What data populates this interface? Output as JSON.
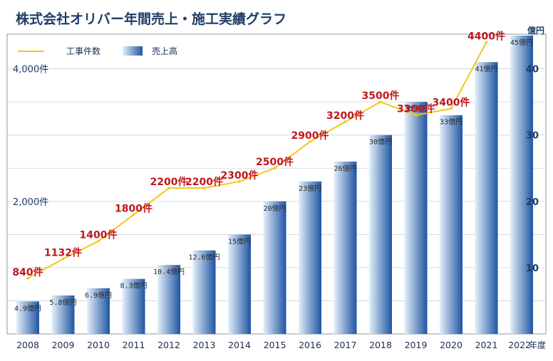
{
  "chart_data": {
    "type": "bar",
    "title": "株式会社オリバー年間売上・施工実績グラフ",
    "categories": [
      "2008",
      "2009",
      "2010",
      "2011",
      "2012",
      "2013",
      "2014",
      "2015",
      "2016",
      "2017",
      "2018",
      "2019",
      "2020",
      "2021",
      "2022"
    ],
    "x_unit": "年度",
    "series": [
      {
        "name": "売上高",
        "type": "bar",
        "axis": "right",
        "values": [
          4.9,
          5.8,
          6.9,
          8.3,
          10.4,
          12.6,
          15,
          20,
          23,
          26,
          30,
          35,
          33,
          41,
          45
        ],
        "labels": [
          "4.9億円",
          "5.8億円",
          "6.9億円",
          "8.3億円",
          "10.4億円",
          "12.6億円",
          "15億円",
          "20億円",
          "23億円",
          "26億円",
          "30億円",
          "35億円",
          "33億円",
          "41億円",
          "45億円"
        ]
      },
      {
        "name": "工事件数",
        "type": "line",
        "axis": "left",
        "values": [
          840,
          1132,
          1400,
          1800,
          2200,
          2200,
          2300,
          2500,
          2900,
          3200,
          3500,
          3300,
          3400,
          4400,
          null
        ],
        "labels": [
          "840件",
          "1132件",
          "1400件",
          "1800件",
          "2200件",
          "2200件",
          "2300件",
          "2500件",
          "2900件",
          "3200件",
          "3500件",
          "3300件",
          "3400件",
          "4400件",
          ""
        ]
      }
    ],
    "left_axis": {
      "range": [
        0,
        4500
      ],
      "ticks": [
        2000,
        4000
      ],
      "tick_labels": [
        "2,000件",
        "4,000件"
      ]
    },
    "right_axis": {
      "range": [
        0,
        45
      ],
      "unit": "億円",
      "ticks": [
        10,
        20,
        30,
        40
      ],
      "tick_labels": [
        "10",
        "20",
        "30",
        "40"
      ]
    },
    "grid": true,
    "legend": [
      "工事件数",
      "売上高"
    ],
    "legend_position": "top-left",
    "colors": {
      "bar_dark": "#1f55a3",
      "bar_light": "#e4f0fa",
      "line": "#f2c81a",
      "count_label": "#c0161c",
      "axis_text": "#1f3d66",
      "grid": "#cbd3dc"
    }
  }
}
